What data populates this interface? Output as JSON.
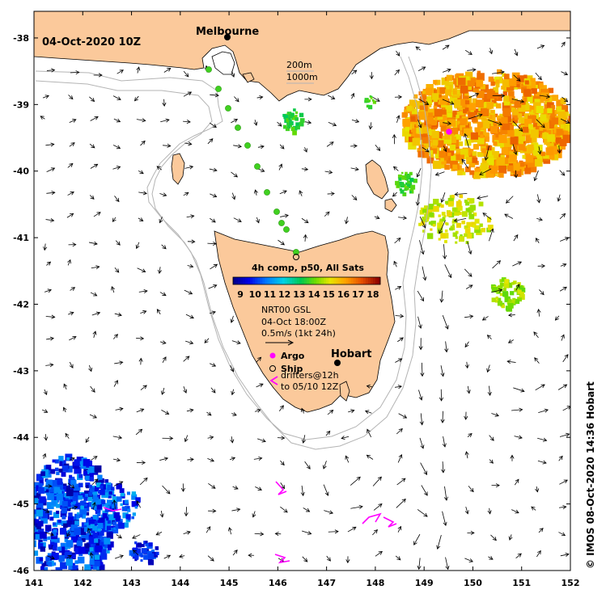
{
  "map": {
    "date_label": "04-Oct-2020 10Z",
    "lon_ticks": [
      "141",
      "142",
      "143",
      "144",
      "145",
      "146",
      "147",
      "148",
      "149",
      "150",
      "151",
      "152"
    ],
    "lat_ticks": [
      "-38",
      "-39",
      "-40",
      "-41",
      "-42",
      "-43",
      "-44",
      "-45",
      "-46"
    ],
    "lon_range": [
      141,
      152
    ],
    "lat_range": [
      -37.6,
      -46
    ],
    "cities": [
      {
        "name": "Melbourne",
        "lon": 144.96,
        "lat": -37.81
      },
      {
        "name": "Hobart",
        "lon": 147.33,
        "lat": -42.88
      }
    ],
    "isobath_legend": [
      "200m",
      "1000m"
    ],
    "colorbar": {
      "title": "4h comp, p50, All Sats",
      "labels": [
        "9",
        "10",
        "11",
        "12",
        "13",
        "14",
        "15",
        "16",
        "17",
        "18"
      ],
      "range": [
        8.5,
        18.5
      ]
    },
    "current_legend": {
      "source": "NRT00 GSL",
      "time": "04-Oct 18:00Z",
      "scale": "0.5m/s (1kt 24h)"
    },
    "marker_legend": {
      "argo": "Argo",
      "ship": "Ship",
      "drifters_line1": "drifters@12h",
      "drifters_line2": "to 05/10 12Z"
    },
    "credit": "© IMOS 08-Oct-2020 14:36 Hobart",
    "colors": {
      "land": "#fbc99b",
      "argo": "#ff00ff",
      "drifter": "#ff00ff",
      "isobath": "#b4b4b4"
    }
  }
}
